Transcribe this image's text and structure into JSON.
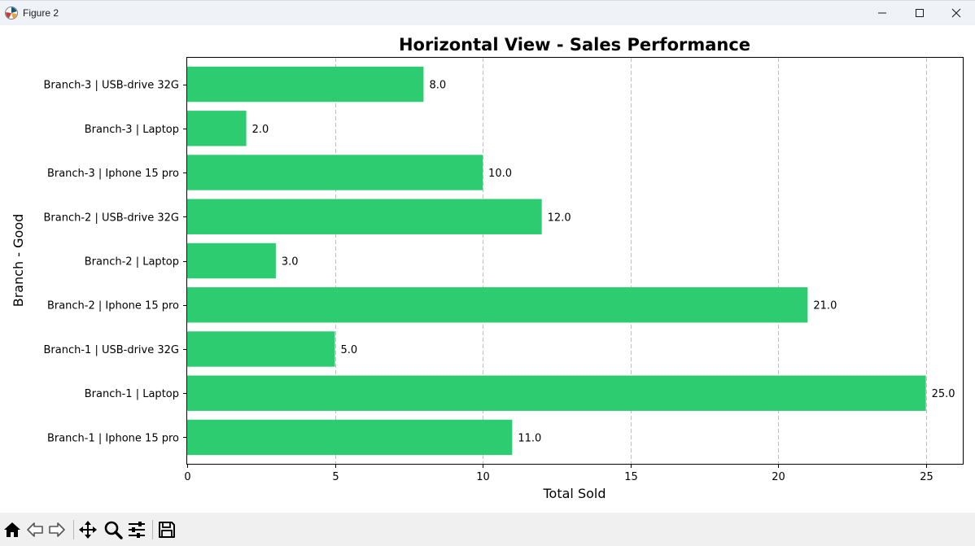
{
  "window": {
    "title": "Figure 2"
  },
  "toolbar": {
    "buttons": [
      {
        "name": "home-icon"
      },
      {
        "name": "back-icon"
      },
      {
        "name": "forward-icon"
      },
      {
        "name": "pan-icon"
      },
      {
        "name": "zoom-icon"
      },
      {
        "name": "configure-icon"
      },
      {
        "name": "save-icon"
      }
    ]
  },
  "colors": {
    "bar": "#2ecc71",
    "grid": "#b0b0b0"
  },
  "chart_data": {
    "type": "bar",
    "orientation": "horizontal",
    "title": "Horizontal View - Sales Performance",
    "xlabel": "Total Sold",
    "ylabel": "Branch - Good",
    "categories": [
      "Branch-1  | Iphone 15 pro",
      "Branch-1  | Laptop",
      "Branch-1  | USB-drive 32G",
      "Branch-2  | Iphone 15 pro",
      "Branch-2  | Laptop",
      "Branch-2  | USB-drive 32G",
      "Branch-3  | Iphone 15 pro",
      "Branch-3  | Laptop",
      "Branch-3  | USB-drive 32G"
    ],
    "values": [
      11,
      25,
      5,
      21,
      3,
      12,
      10,
      2,
      8
    ],
    "data_labels": [
      "11.0",
      "25.0",
      "5.0",
      "21.0",
      "3.0",
      "12.0",
      "10.0",
      "2.0",
      "8.0"
    ],
    "xlim": [
      0,
      26.25
    ],
    "xticks": [
      0,
      5,
      10,
      15,
      20,
      25
    ],
    "grid": "x-dashed"
  }
}
